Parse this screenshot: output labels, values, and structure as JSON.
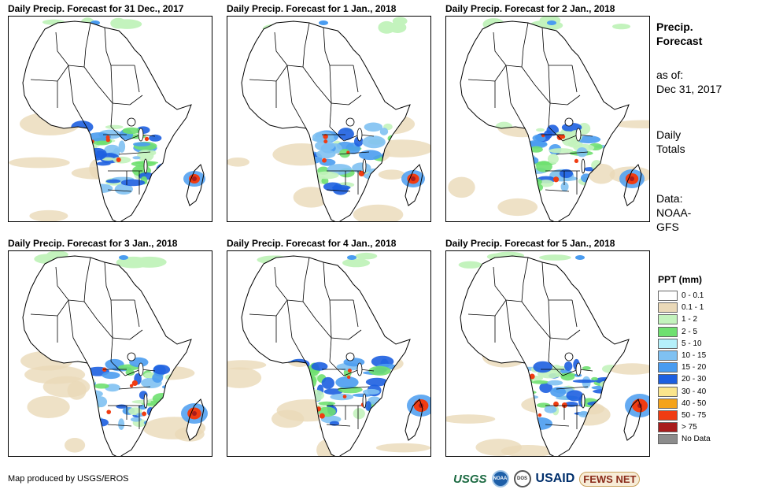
{
  "panels": [
    {
      "title": "Daily Precip. Forecast for 31 Dec., 2017"
    },
    {
      "title": "Daily Precip. Forecast for 1 Jan., 2018"
    },
    {
      "title": "Daily Precip. Forecast for 2 Jan., 2018"
    },
    {
      "title": "Daily Precip. Forecast for 3 Jan., 2018"
    },
    {
      "title": "Daily Precip. Forecast for 4 Jan., 2018"
    },
    {
      "title": "Daily Precip. Forecast for 5 Jan., 2018"
    }
  ],
  "side": {
    "heading_line1": "Precip.",
    "heading_line2": "Forecast",
    "asof_label": "as of:",
    "asof_date": "Dec 31, 2017",
    "totals_line1": "Daily",
    "totals_line2": "Totals",
    "data_line1": "Data:",
    "data_line2": "NOAA-",
    "data_line3": "GFS"
  },
  "legend": {
    "title": "PPT (mm)",
    "items": [
      {
        "label": "0 - 0.1",
        "color": "#ffffff"
      },
      {
        "label": "0.1 - 1",
        "color": "#ead9b8"
      },
      {
        "label": "1 - 2",
        "color": "#c3f3bd"
      },
      {
        "label": "2 - 5",
        "color": "#6fe070"
      },
      {
        "label": "5 - 10",
        "color": "#b5f0fa"
      },
      {
        "label": "10 - 15",
        "color": "#7fc1f2"
      },
      {
        "label": "15 - 20",
        "color": "#4a9cf0"
      },
      {
        "label": "20 - 30",
        "color": "#1d5fe0"
      },
      {
        "label": "30 - 40",
        "color": "#fbe58c"
      },
      {
        "label": "40 - 50",
        "color": "#f5a31a"
      },
      {
        "label": "50 - 75",
        "color": "#f03c12"
      },
      {
        "label": "> 75",
        "color": "#a81c1c"
      },
      {
        "label": "No Data",
        "color": "#8c8c8c"
      }
    ]
  },
  "footer": {
    "credit": "Map produced by USGS/EROS",
    "logo_usgs": "USGS",
    "logo_noaa": "NOAA",
    "logo_dos": "DOS",
    "logo_usaid": "USAID",
    "logo_fews": "FEWS NET"
  }
}
